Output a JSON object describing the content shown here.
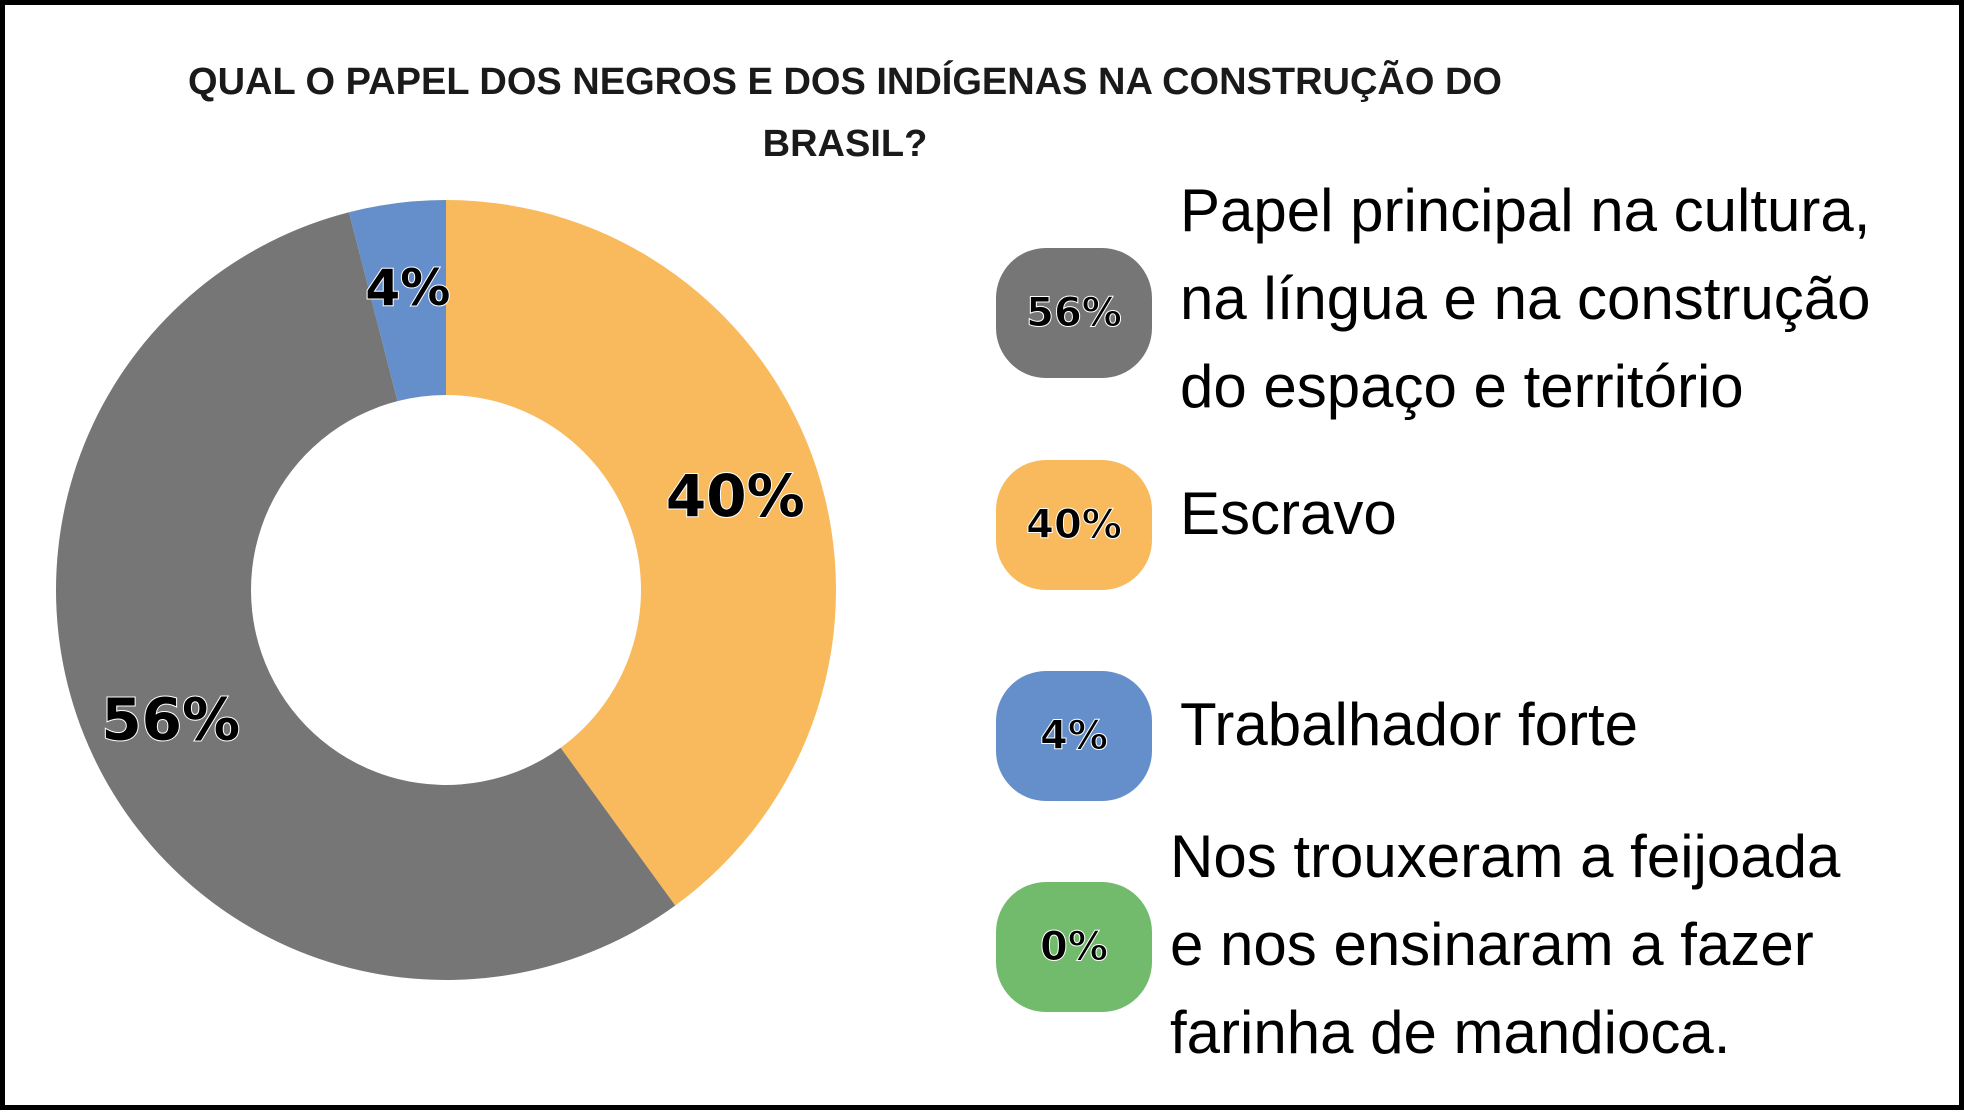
{
  "chart_data": {
    "type": "pie",
    "title": "QUAL O PAPEL DOS NEGROS E DOS INDÍGENAS NA CONSTRUÇÃO DO BRASIL?",
    "donut": true,
    "slices": [
      {
        "label": "Papel principal na cultura, na língua e na construção do espaço e território",
        "value": 56,
        "value_label": "56%",
        "color": "#767676"
      },
      {
        "label": "Escravo",
        "value": 40,
        "value_label": "40%",
        "color": "#f8ba5c"
      },
      {
        "label": "Trabalhador forte",
        "value": 4,
        "value_label": "4%",
        "color": "#658fcb"
      },
      {
        "label": "Nos trouxeram a feijoada e nos ensinaram a fazer farinha de mandioca.",
        "value": 0,
        "value_label": "0%",
        "color": "#72bb6d"
      }
    ],
    "legend_position": "right"
  },
  "legend": [
    {
      "badge": "56%",
      "text": "Papel principal na cultura,\nna língua e na construção\ndo espaço e território",
      "color": "#767676"
    },
    {
      "badge": "40%",
      "text": "Escravo",
      "color": "#f8ba5c"
    },
    {
      "badge": "4%",
      "text": "Trabalhador forte",
      "color": "#658fcb"
    },
    {
      "badge": "0%",
      "text": "Nos trouxeram a feijoada\ne nos ensinaram a fazer\nfarinha de mandioca.",
      "color": "#72bb6d"
    }
  ]
}
